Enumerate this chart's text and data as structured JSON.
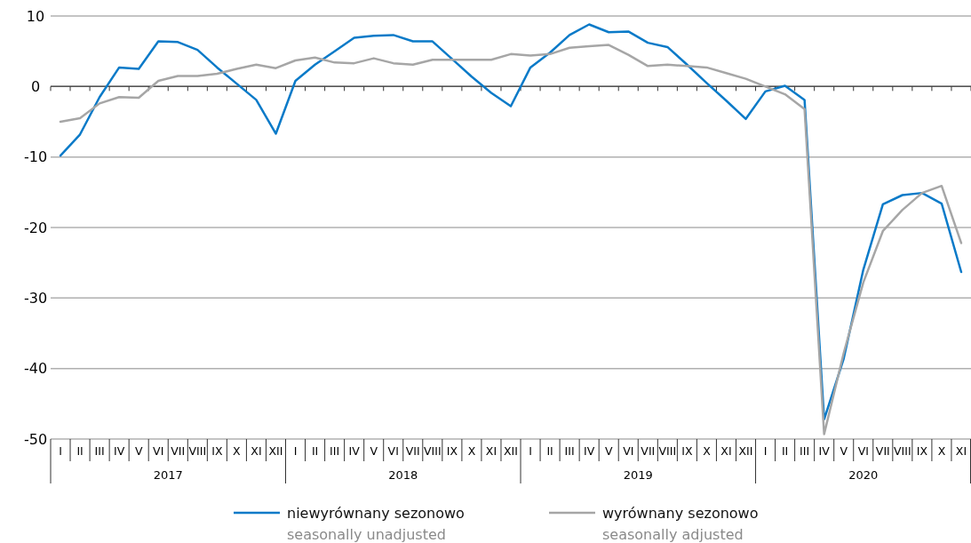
{
  "chart_data": {
    "type": "line",
    "categories": [
      "I",
      "II",
      "III",
      "IV",
      "V",
      "VI",
      "VII",
      "VIII",
      "IX",
      "X",
      "XI",
      "XII",
      "I",
      "II",
      "III",
      "IV",
      "V",
      "VI",
      "VII",
      "VIII",
      "IX",
      "X",
      "XI",
      "XII",
      "I",
      "II",
      "III",
      "IV",
      "V",
      "VI",
      "VII",
      "VIII",
      "IX",
      "X",
      "XI",
      "XII",
      "I",
      "II",
      "III",
      "IV",
      "V",
      "VI",
      "VII",
      "VIII",
      "IX",
      "X",
      "XI"
    ],
    "annotations": [
      "2017",
      "2018",
      "2019",
      "2020"
    ],
    "series": [
      {
        "name": "niewyrównany sezonowo\nseasonally unadjusted",
        "color": "#0a7ac8",
        "values": [
          -9.8,
          -6.8,
          -1.5,
          2.7,
          2.5,
          6.4,
          6.3,
          5.2,
          2.7,
          0.4,
          -1.9,
          -6.7,
          0.8,
          3.1,
          5.0,
          6.9,
          7.2,
          7.3,
          6.4,
          6.4,
          3.9,
          1.4,
          -0.9,
          -2.8,
          2.7,
          4.8,
          7.3,
          8.8,
          7.7,
          7.8,
          6.2,
          5.6,
          3.1,
          0.5,
          -2.0,
          -4.6,
          -0.7,
          0.1,
          -1.9,
          -47.2,
          -38.6,
          -26.0,
          -16.7,
          -15.4,
          -15.1,
          -16.6,
          -26.3
        ]
      },
      {
        "name": "wyrównany sezonowo\nseasonally adjusted",
        "color": "#a6a6a6",
        "values": [
          -5.0,
          -4.5,
          -2.4,
          -1.5,
          -1.6,
          0.8,
          1.5,
          1.5,
          1.8,
          2.5,
          3.1,
          2.6,
          3.7,
          4.1,
          3.4,
          3.3,
          4.0,
          3.3,
          3.1,
          3.8,
          3.8,
          3.8,
          3.8,
          4.6,
          4.4,
          4.6,
          5.5,
          5.7,
          5.9,
          4.5,
          2.9,
          3.1,
          2.9,
          2.7,
          1.9,
          1.1,
          0.0,
          -1.1,
          -3.2,
          -49.3,
          -37.8,
          -27.8,
          -20.5,
          -17.5,
          -15.1,
          -14.1,
          -22.2
        ]
      }
    ],
    "ylim": [
      -50,
      10
    ],
    "yticks": [
      -50,
      -40,
      -30,
      -20,
      -10,
      0,
      10
    ],
    "grid": "y",
    "legend": "bottom",
    "marker": "none",
    "line_style": "solid"
  }
}
